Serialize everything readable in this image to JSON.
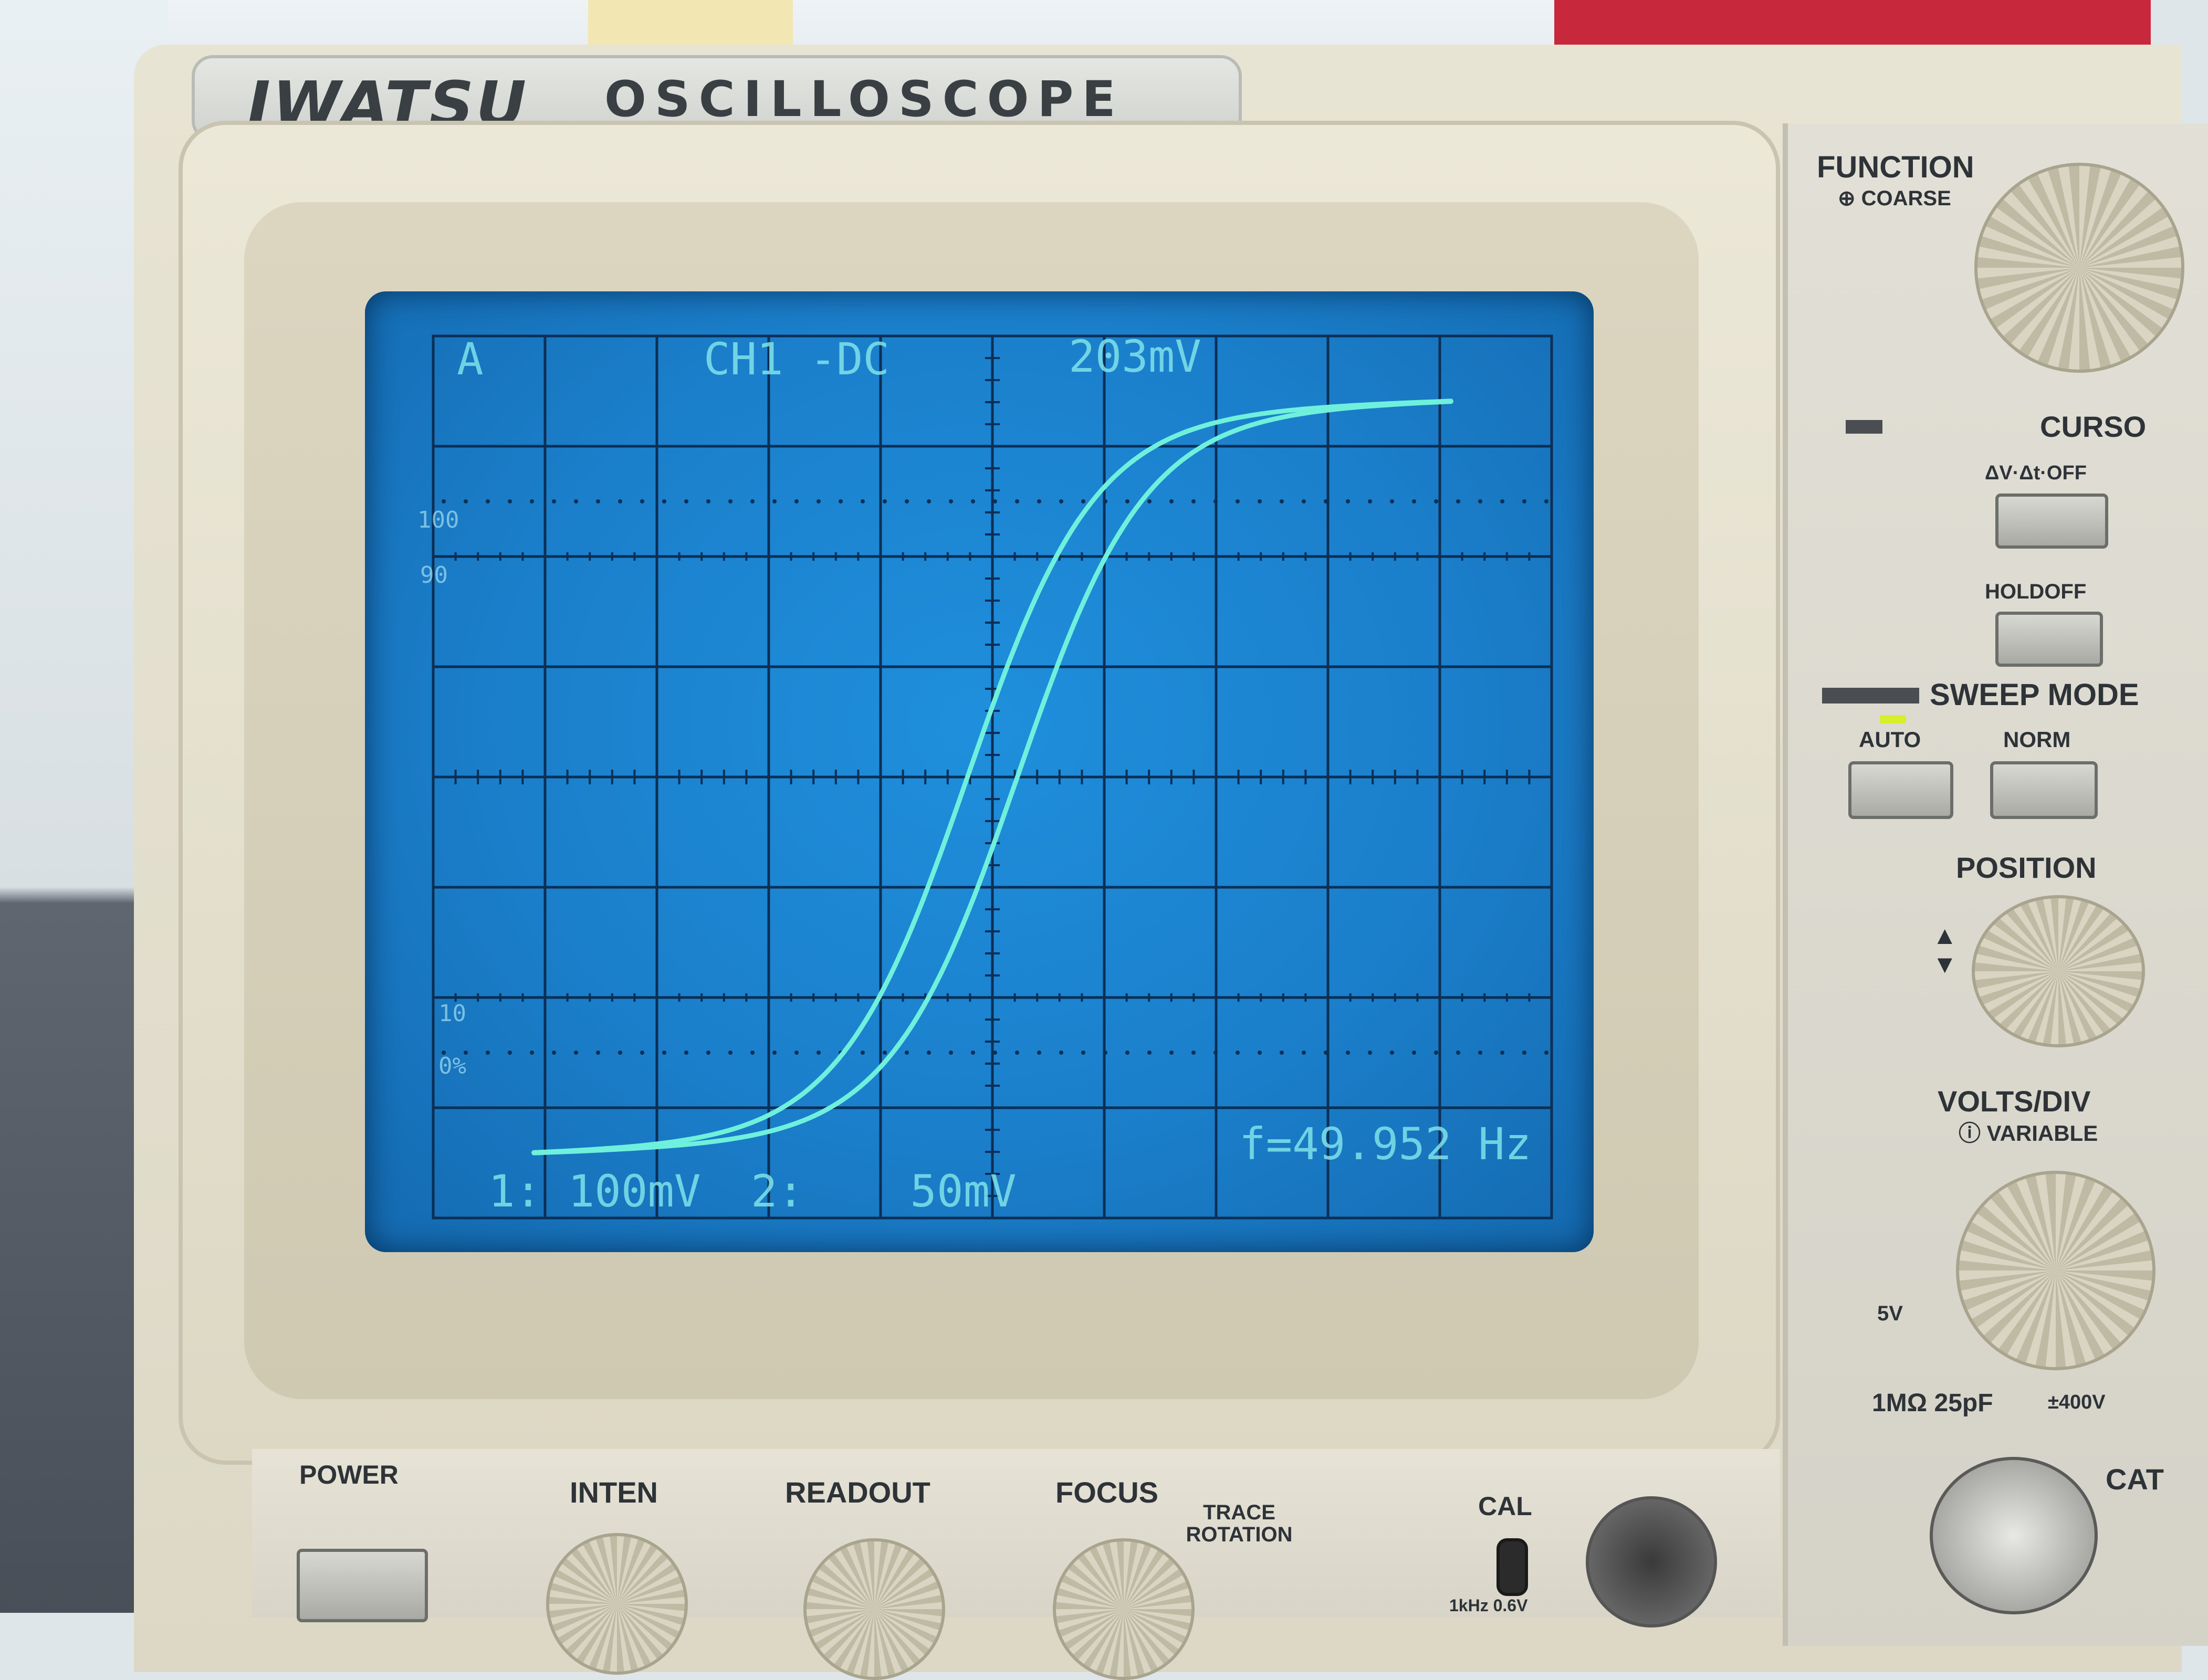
{
  "brand": {
    "name": "IWATSU",
    "model": "OSCILLOSCOPE"
  },
  "screen": {
    "top_left": "A",
    "channel_readout": "CH1 -DC",
    "voltage_readout": "203mV",
    "frequency_readout": "f=49.952 Hz",
    "ch1_scale": "1: 100mV",
    "ch2_scale": "2:    50mV",
    "grat_100": "100",
    "grat_90": "90",
    "grat_10": "10",
    "grat_0": "0%",
    "trace_color": "#6ff0dc",
    "background_color": "#1b7fcb"
  },
  "panel": {
    "function": "FUNCTION",
    "coarse": "⊕ COARSE",
    "cursor": "CURSO",
    "cursor_mode": "ΔV·Δt·OFF",
    "holdoff": "HOLDOFF",
    "sweep_mode": "SWEEP MODE",
    "auto": "AUTO",
    "norm": "NORM",
    "position": "POSITION",
    "volts_div": "VOLTS/DIV",
    "variable": "ⓘ VARIABLE",
    "five_v": "5V",
    "impedance": "1MΩ  25pF",
    "max_voltage": "±400V",
    "cat": "CAT"
  },
  "bottom": {
    "power": "POWER",
    "inten": "INTEN",
    "readout": "READOUT",
    "focus": "FOCUS",
    "trace_rotation": "TRACE ROTATION",
    "cal": "CAL",
    "cal_spec": "1kHz 0.6V"
  }
}
